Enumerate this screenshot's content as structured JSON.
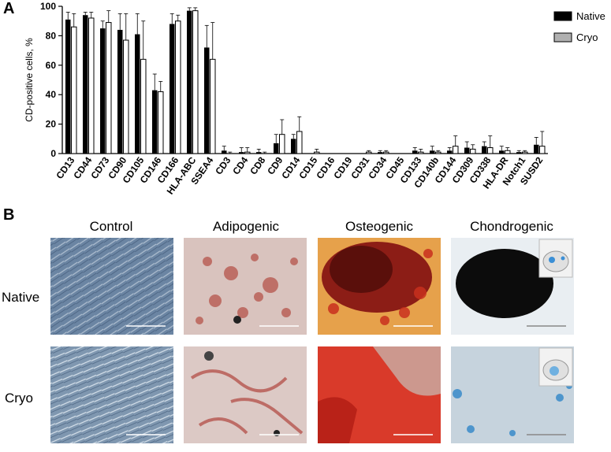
{
  "panel_a_label": "A",
  "panel_b_label": "B",
  "chart_data": {
    "type": "bar",
    "title": "",
    "xlabel": "",
    "ylabel": "CD-positive cells, %",
    "ylim": [
      0,
      100
    ],
    "yticks": [
      0,
      20,
      40,
      60,
      80,
      100
    ],
    "legend_position": "top-right",
    "grid": false,
    "categories": [
      "CD13",
      "CD44",
      "CD73",
      "CD90",
      "CD105",
      "CD146",
      "CD166",
      "HLA-ABC",
      "SSEA4",
      "CD3",
      "CD4",
      "CD8",
      "CD9",
      "CD14",
      "CD15",
      "CD16",
      "CD19",
      "CD31",
      "CD34",
      "CD45",
      "CD133",
      "CD140b",
      "CD144",
      "CD309",
      "CD338",
      "HLA-DR",
      "Notch1",
      "SUSD2"
    ],
    "series": [
      {
        "name": "Native",
        "color": "#000000",
        "values": [
          91,
          94,
          85,
          84,
          81,
          43,
          88,
          97,
          72,
          2,
          1,
          1,
          7,
          10,
          0,
          0,
          0,
          0,
          1,
          0,
          2,
          2,
          2,
          4,
          5,
          2,
          1,
          6
        ],
        "errors": [
          5,
          2,
          5,
          11,
          14,
          11,
          7,
          2,
          15,
          3,
          3,
          2,
          6,
          3,
          0,
          0,
          0,
          0,
          1,
          0,
          2,
          3,
          2,
          4,
          3,
          3,
          1,
          5
        ]
      },
      {
        "name": "Cryo",
        "color": "#aaaaaa",
        "values": [
          86,
          92,
          89,
          77,
          64,
          42,
          90,
          97,
          64,
          0,
          1,
          0,
          13,
          15,
          1,
          0,
          0,
          1,
          1,
          0,
          1,
          1,
          5,
          3,
          4,
          2,
          1,
          5
        ],
        "errors": [
          9,
          4,
          8,
          18,
          26,
          7,
          4,
          2,
          25,
          1,
          3,
          1,
          10,
          10,
          2,
          0,
          0,
          1,
          1,
          0,
          2,
          1,
          7,
          3,
          8,
          2,
          1,
          10
        ]
      }
    ]
  },
  "panel_b": {
    "columns": [
      "Control",
      "Adipogenic",
      "Osteogenic",
      "Chondrogenic"
    ],
    "rows": [
      "Native",
      "Cryo"
    ]
  }
}
